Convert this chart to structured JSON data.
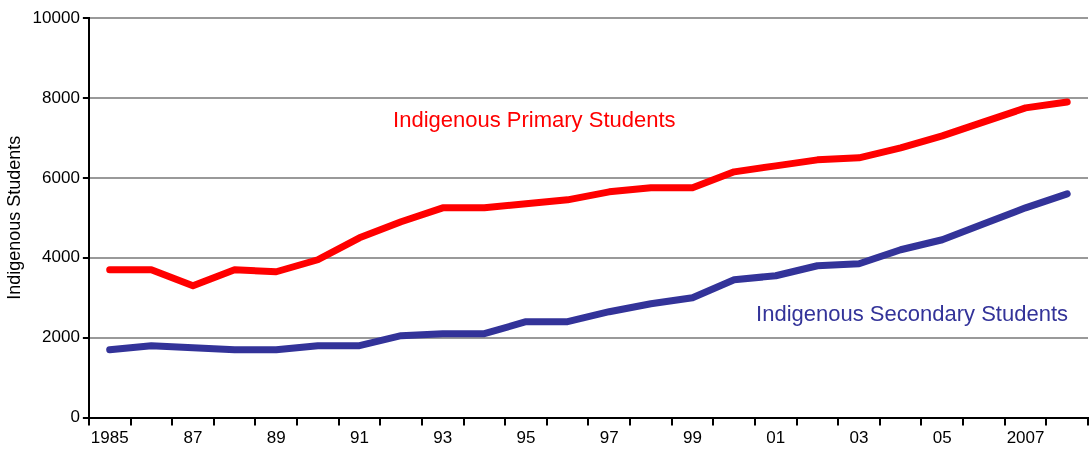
{
  "chart_data": {
    "type": "line",
    "ylabel": "Indigenous Students",
    "categories": [
      "1985",
      null,
      "87",
      null,
      "89",
      null,
      "91",
      null,
      "93",
      null,
      "95",
      null,
      "97",
      null,
      "99",
      null,
      "01",
      null,
      "03",
      null,
      "05",
      null,
      "2007",
      null
    ],
    "series": [
      {
        "name": "Indigenous Primary Students",
        "color": "#ff0000",
        "values": [
          3700,
          3700,
          3300,
          3700,
          3650,
          3950,
          4500,
          4900,
          5250,
          5250,
          5350,
          5450,
          5650,
          5750,
          5750,
          6150,
          6300,
          6450,
          6500,
          6750,
          7050,
          7400,
          7750,
          7900
        ]
      },
      {
        "name": "Indigenous Secondary Students",
        "color": "#333399",
        "values": [
          1700,
          1800,
          1750,
          1700,
          1700,
          1800,
          1800,
          2050,
          2100,
          2100,
          2400,
          2400,
          2650,
          2850,
          3000,
          3450,
          3550,
          3800,
          3850,
          4200,
          4450,
          4850,
          5250,
          5600
        ]
      }
    ],
    "ylim": [
      0,
      10000
    ],
    "yticks": [
      0,
      2000,
      4000,
      6000,
      8000,
      10000
    ],
    "grid": "y",
    "legend": false,
    "marker": "none",
    "line_style": "solid"
  }
}
